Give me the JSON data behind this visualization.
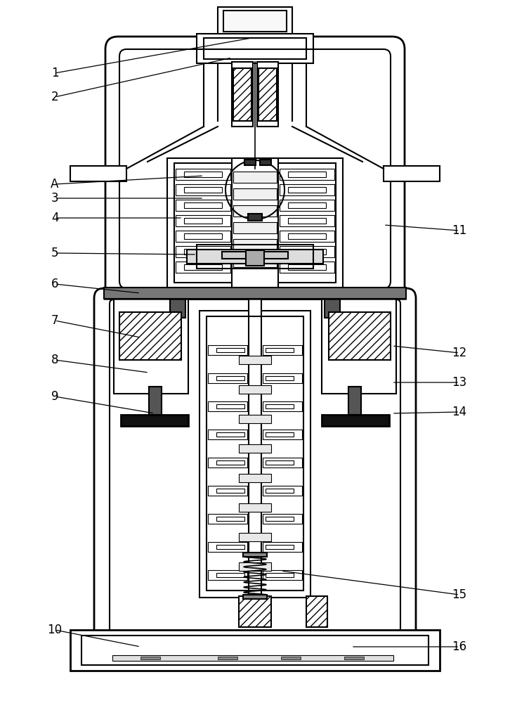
{
  "bg_color": "#ffffff",
  "line_color": "#000000",
  "lw": 1.5,
  "lw_thin": 0.8,
  "fig_width": 7.26,
  "fig_height": 10.0
}
